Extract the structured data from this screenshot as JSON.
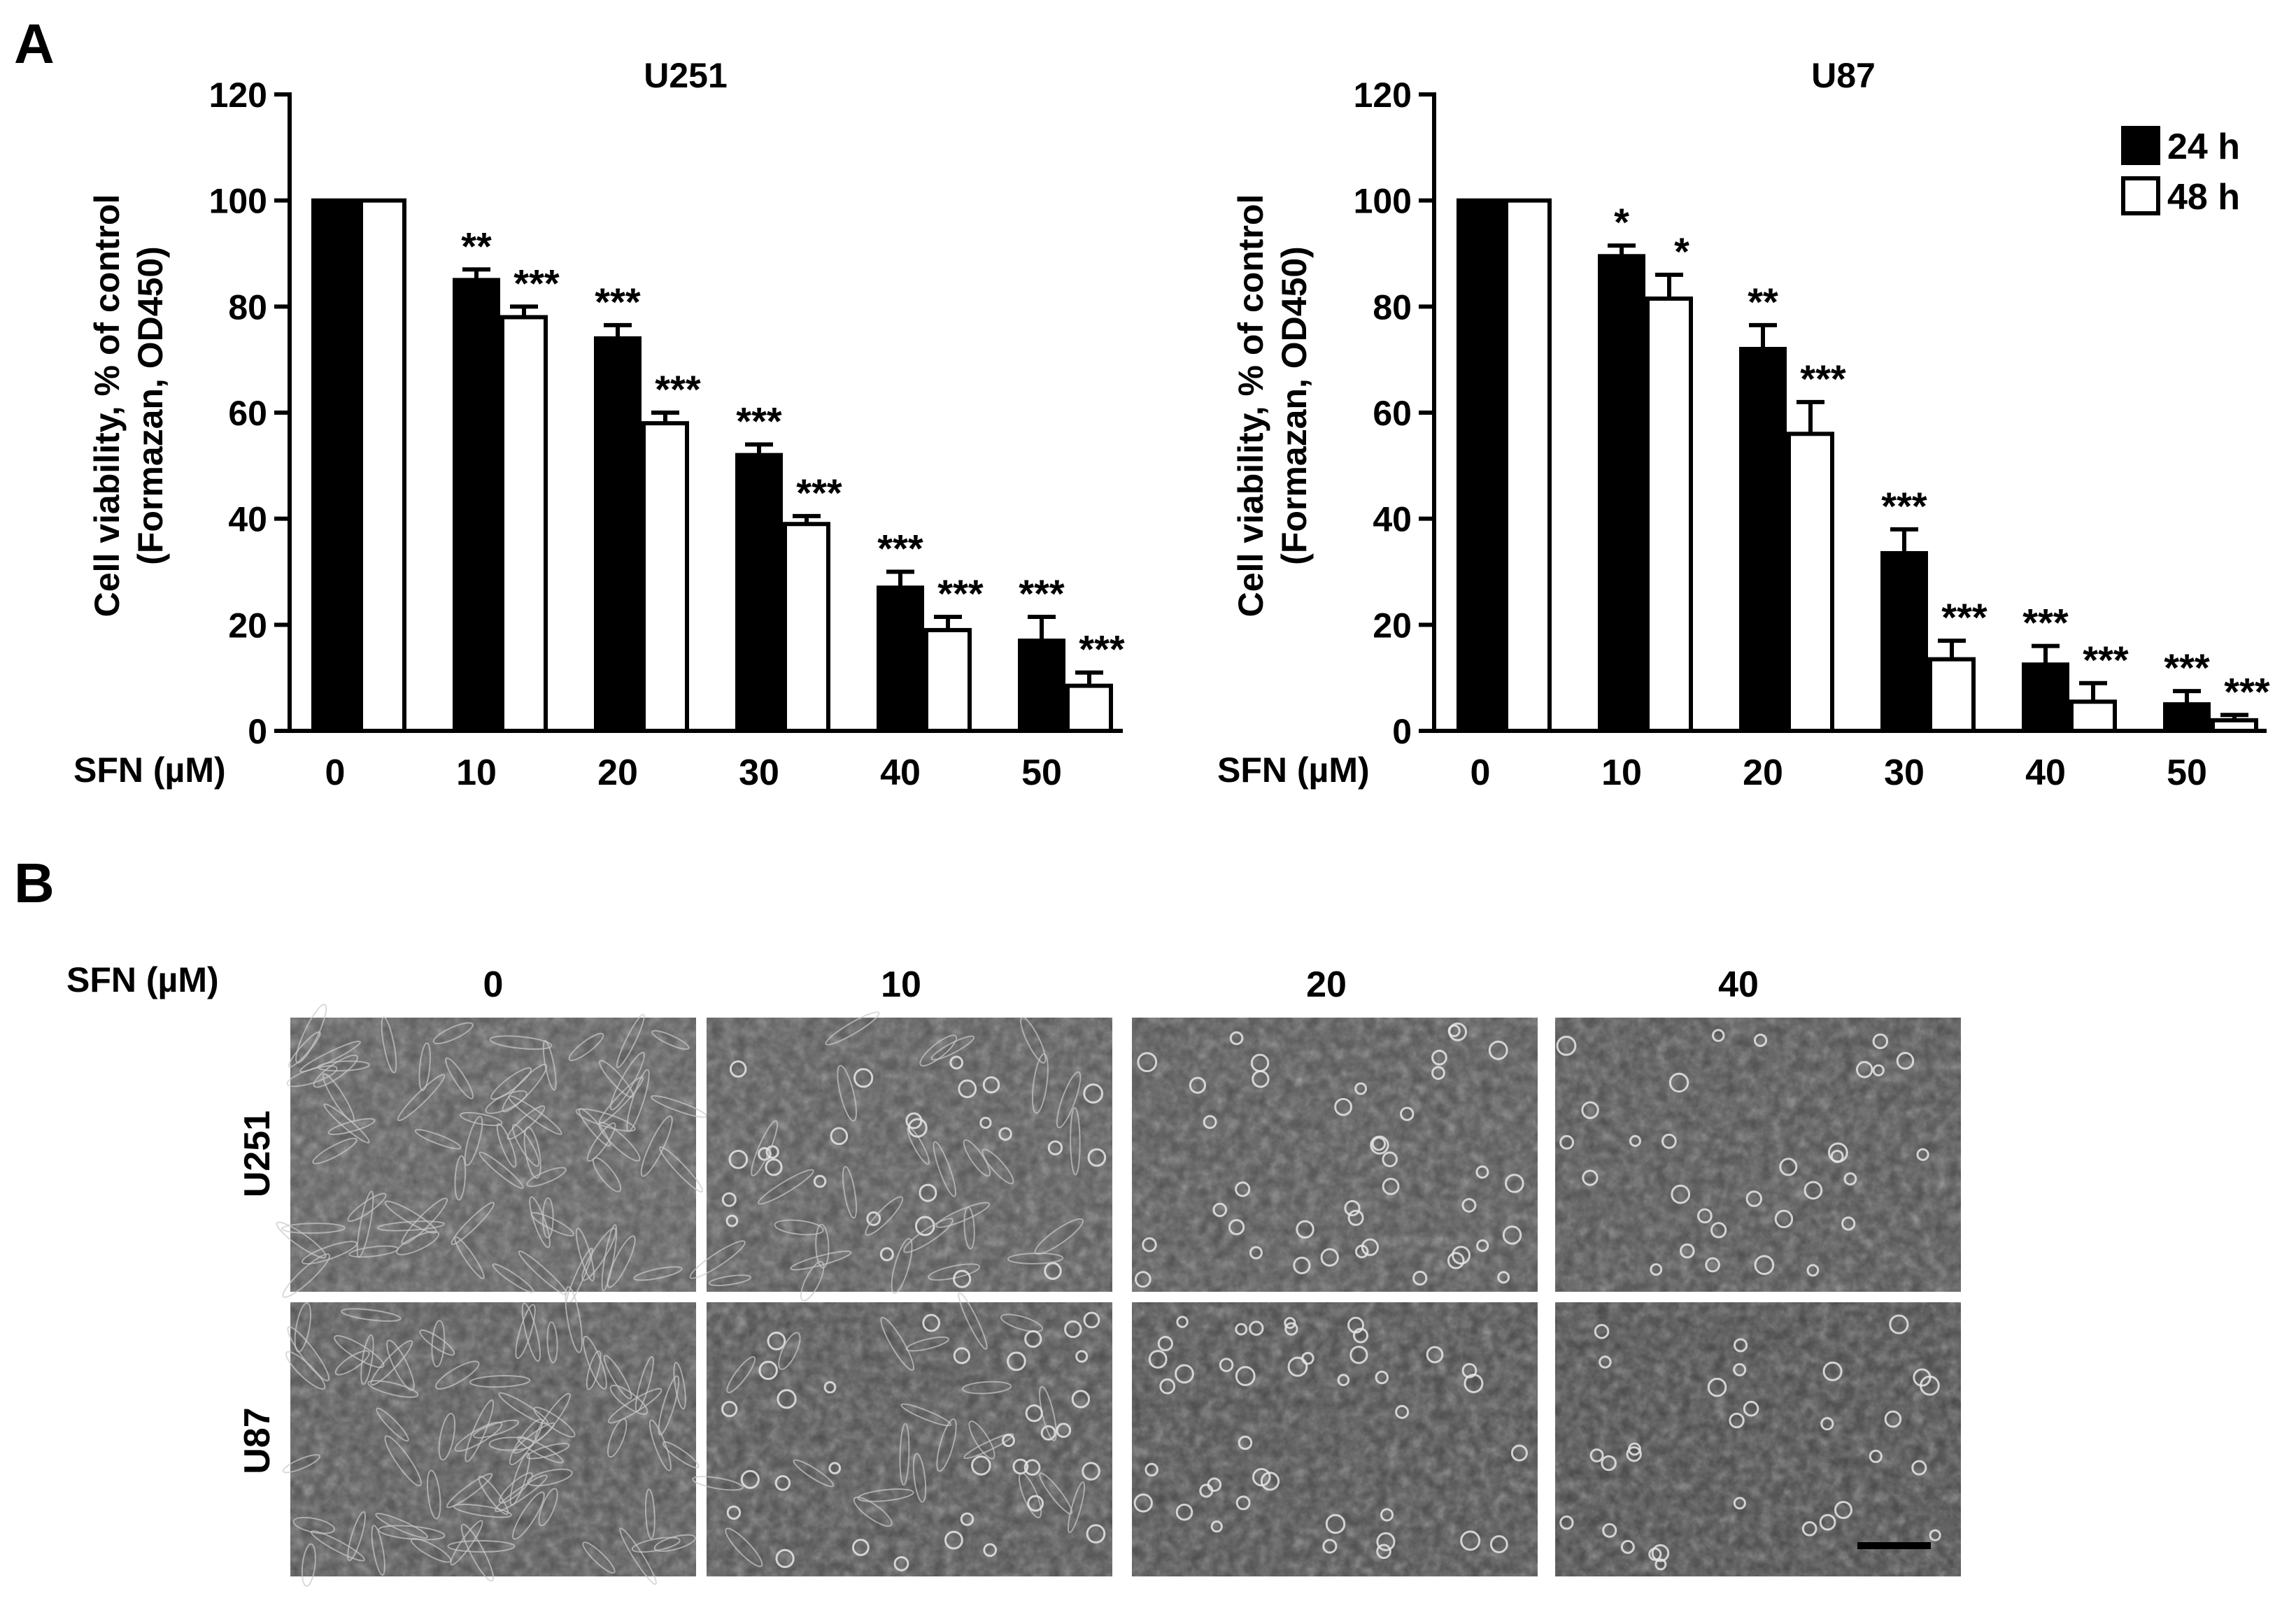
{
  "panels": {
    "a_label": "A",
    "b_label": "B"
  },
  "colors": {
    "bar_24h": "#000000",
    "bar_48h": "#ffffff",
    "stroke": "#000000"
  },
  "chart_data": [
    {
      "type": "bar",
      "title": "U251",
      "xlabel": "SFN (µM)",
      "ylabel_line1": "Cell viability, % of control",
      "ylabel_line2": "(Formazan, OD450)",
      "categories": [
        "0",
        "10",
        "20",
        "30",
        "40",
        "50"
      ],
      "ylim": [
        0,
        120
      ],
      "yticks": [
        "0",
        "20",
        "40",
        "60",
        "80",
        "100",
        "120"
      ],
      "series": [
        {
          "name": "24 h",
          "values": [
            100,
            85,
            74,
            52,
            27,
            17
          ],
          "errors": [
            0,
            2,
            2.5,
            2,
            3,
            4.5
          ],
          "significance": [
            "",
            "**",
            "***",
            "***",
            "***",
            "***"
          ]
        },
        {
          "name": "48 h",
          "values": [
            100,
            78,
            58,
            39,
            19,
            8.5
          ],
          "errors": [
            0,
            2,
            2,
            1.5,
            2.5,
            2.5
          ],
          "significance": [
            "",
            "***",
            "***",
            "***",
            "***",
            "***"
          ]
        }
      ]
    },
    {
      "type": "bar",
      "title": "U87",
      "xlabel": "SFN (µM)",
      "ylabel_line1": "Cell viability, % of control",
      "ylabel_line2": "(Formazan, OD450)",
      "categories": [
        "0",
        "10",
        "20",
        "30",
        "40",
        "50"
      ],
      "ylim": [
        0,
        120
      ],
      "yticks": [
        "0",
        "20",
        "40",
        "60",
        "80",
        "100",
        "120"
      ],
      "legend_position": "top-right",
      "series": [
        {
          "name": "24 h",
          "values": [
            100,
            89.5,
            72,
            33.5,
            12.5,
            5
          ],
          "errors": [
            0,
            2,
            4.5,
            4.5,
            3.5,
            2.5
          ],
          "significance": [
            "",
            "*",
            "**",
            "***",
            "***",
            "***"
          ]
        },
        {
          "name": "48 h",
          "values": [
            100,
            81.5,
            56,
            13.5,
            5.5,
            2
          ],
          "errors": [
            0,
            4.5,
            6,
            3.5,
            3.5,
            1
          ],
          "significance": [
            "",
            "*",
            "***",
            "***",
            "***",
            "***"
          ]
        }
      ]
    }
  ],
  "micrographs": {
    "sfn_label": "SFN (µM)",
    "concentrations": [
      "0",
      "10",
      "20",
      "40"
    ],
    "rows": [
      "U251",
      "U87"
    ]
  }
}
